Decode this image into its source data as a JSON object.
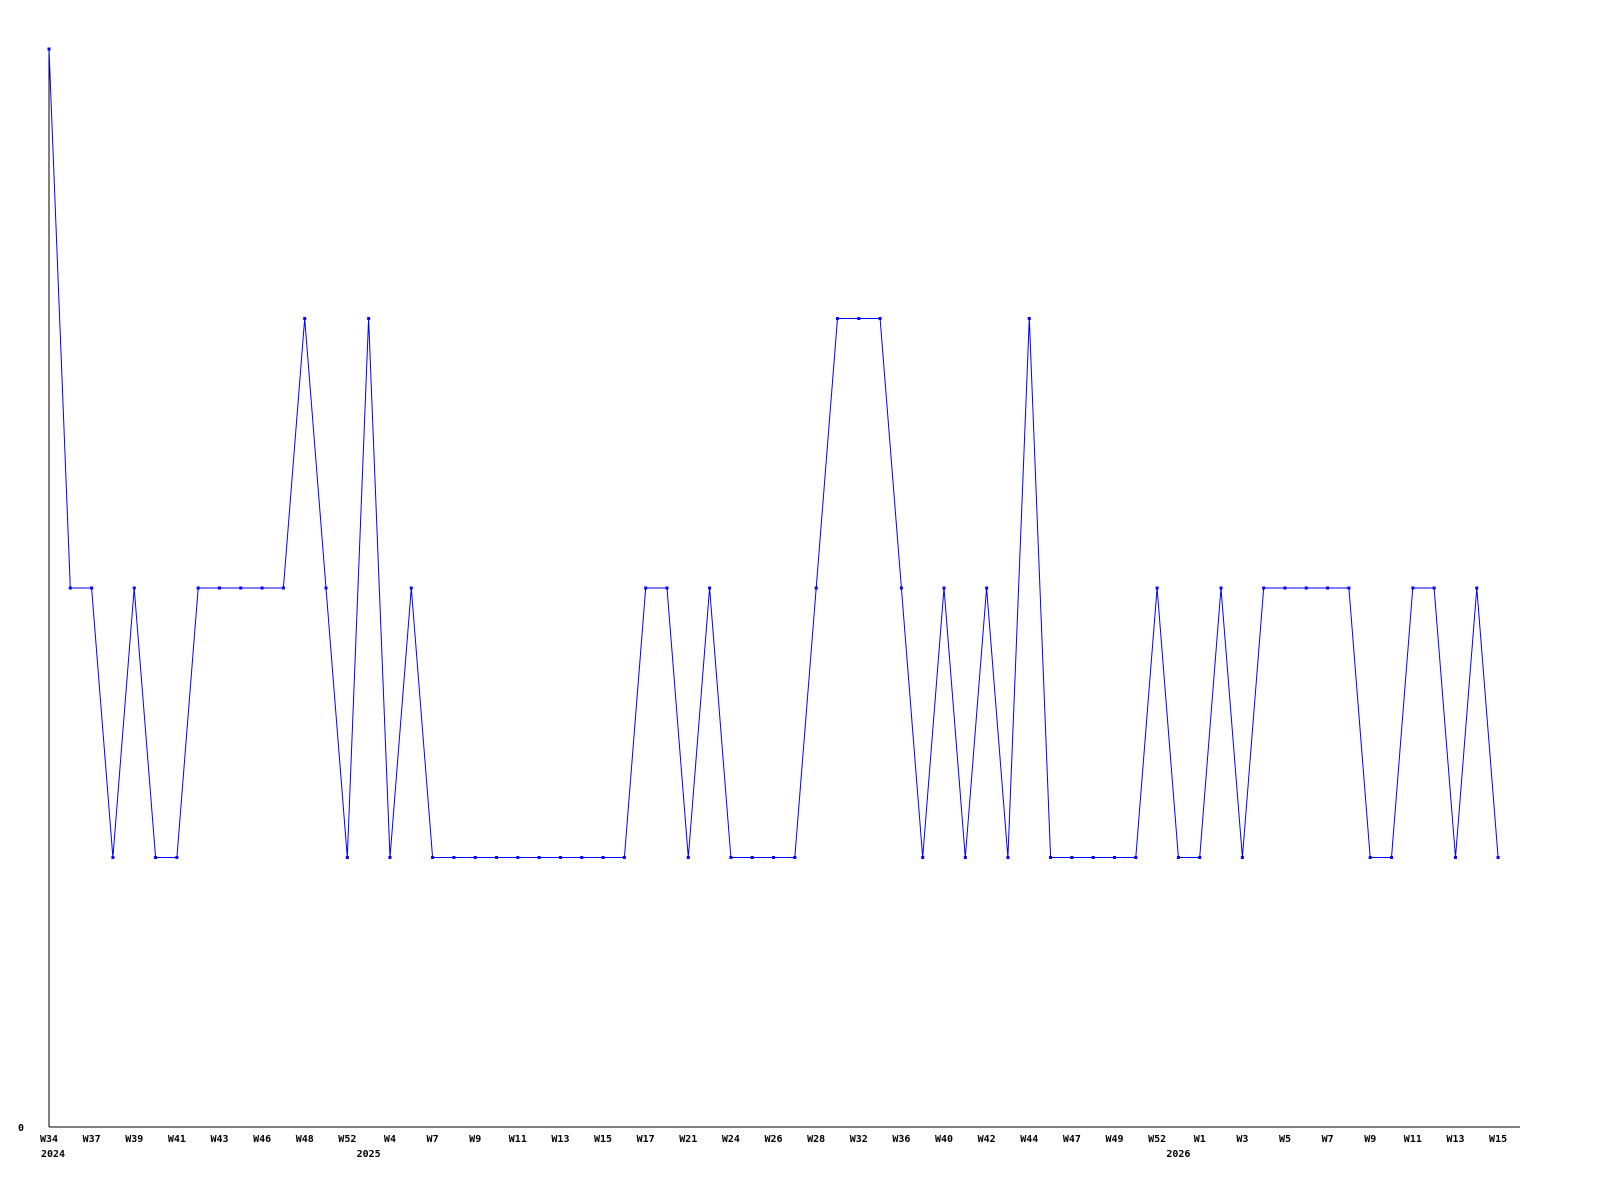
{
  "chart_data": {
    "type": "line",
    "title": "",
    "xlabel": "",
    "ylabel": "",
    "ylim": [
      0,
      4
    ],
    "y_tick_labels": [
      "0"
    ],
    "grid": false,
    "line_color": "#0000ff",
    "axis_color": "#000000",
    "x_tick_labels": [
      "W34",
      "W37",
      "W39",
      "W41",
      "W43",
      "W46",
      "W48",
      "W52",
      "W4",
      "W7",
      "W9",
      "W11",
      "W13",
      "W15",
      "W17",
      "W21",
      "W24",
      "W26",
      "W28",
      "W32",
      "W36",
      "W40",
      "W42",
      "W44",
      "W47",
      "W49",
      "W52",
      "W1",
      "W3",
      "W5",
      "W7",
      "W9",
      "W11",
      "W13",
      "W15"
    ],
    "year_labels": [
      {
        "label": "2024",
        "at_point": 0
      },
      {
        "label": "2025",
        "at_point": 15
      },
      {
        "label": "2026",
        "at_point": 53
      }
    ],
    "series": [
      {
        "values": [
          4,
          2,
          2,
          1,
          2,
          1,
          1,
          2,
          2,
          2,
          2,
          2,
          3,
          2,
          1,
          3,
          1,
          2,
          1,
          1,
          1,
          1,
          1,
          1,
          1,
          1,
          1,
          1,
          2,
          2,
          1,
          2,
          1,
          1,
          1,
          1,
          2,
          3,
          3,
          3,
          2,
          1,
          2,
          1,
          2,
          1,
          3,
          1,
          1,
          1,
          1,
          1,
          2,
          1,
          1,
          2,
          1,
          2,
          2,
          2,
          2,
          2,
          1,
          1,
          2,
          2,
          1,
          2,
          1
        ]
      }
    ]
  }
}
